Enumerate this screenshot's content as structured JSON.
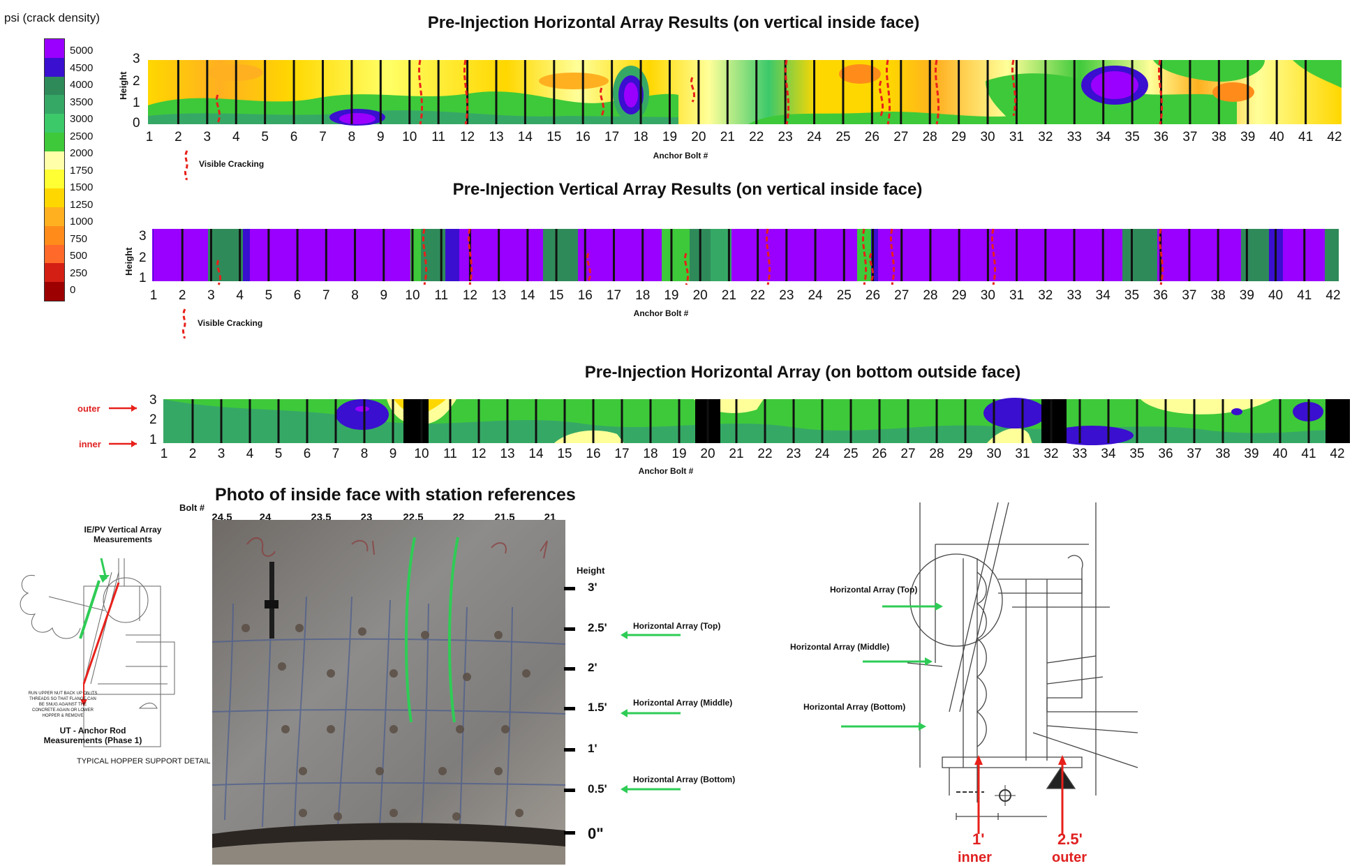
{
  "legend": {
    "title": "psi  (crack density)",
    "labels": [
      "5000",
      "4500",
      "4000",
      "3500",
      "3000",
      "2500",
      "2000",
      "1750",
      "1500",
      "1250",
      "1000",
      "750",
      "500",
      "250",
      "0"
    ],
    "colors": [
      "#9a00ff",
      "#3a0fcf",
      "#2f8a5a",
      "#36a866",
      "#3cc96a",
      "#3ec93a",
      "#ffffaa",
      "#ffff33",
      "#ffd700",
      "#ffb020",
      "#ff8c1a",
      "#ff6a2a",
      "#d41f14",
      "#9c0000",
      "#5a0000"
    ]
  },
  "panels": {
    "p1": {
      "title": "Pre-Injection Horizontal Array Results (on vertical inside face)",
      "ylabel": "Height",
      "yticks": [
        "3",
        "2",
        "1",
        "0"
      ],
      "xlabel": "Anchor Bolt #",
      "cracking_label": "Visible Cracking"
    },
    "p2": {
      "title": "Pre-Injection Vertical Array Results (on vertical inside face)",
      "ylabel": "Height",
      "yticks": [
        "3",
        "2",
        "1"
      ],
      "xlabel": "Anchor Bolt #",
      "cracking_label": "Visible Cracking"
    },
    "p3": {
      "title": "Pre-Injection Horizontal Array (on bottom outside face)",
      "yticks": [
        "3",
        "2",
        "1"
      ],
      "xlabel": "Anchor Bolt #",
      "outer_label": "outer",
      "inner_label": "inner"
    }
  },
  "bolt_numbers": [
    "1",
    "2",
    "3",
    "4",
    "5",
    "6",
    "7",
    "8",
    "9",
    "10",
    "11",
    "12",
    "13",
    "14",
    "15",
    "16",
    "17",
    "18",
    "19",
    "20",
    "21",
    "22",
    "23",
    "24",
    "25",
    "26",
    "27",
    "28",
    "29",
    "30",
    "31",
    "32",
    "33",
    "34",
    "35",
    "36",
    "37",
    "38",
    "39",
    "40",
    "41",
    "42"
  ],
  "photo": {
    "title": "Photo of inside face with station references",
    "bolt_label": "Bolt #",
    "bolt_stations": [
      "24.5",
      "24",
      "23.5",
      "23",
      "22.5",
      "22",
      "21.5",
      "21"
    ],
    "height_label": "Height",
    "heights": [
      "3'",
      "2.5'",
      "2'",
      "1.5'",
      "1'",
      "0.5'",
      "0\""
    ],
    "array_top": "Horizontal Array (Top)",
    "array_middle": "Horizontal Array (Middle)",
    "array_bottom": "Horizontal Array (Bottom)"
  },
  "left_detail": {
    "ie_label": "IE/PV Vertical Array Measurements",
    "ut_label": "UT - Anchor Rod Measurements (Phase 1)",
    "caption": "TYPICAL HOPPER SUPPORT DETAIL",
    "note": "RUN UPPER NUT BACK UP ON ITS THREADS SO THAT FLANGE CAN BE SNUG AGAINST THE CONCRETE AGAIN OR LOWER HOPPER & REMOVE"
  },
  "right_detail": {
    "top": "Horizontal Array (Top)",
    "middle": "Horizontal Array (Middle)",
    "bottom": "Horizontal Array (Bottom)",
    "inner_value": "1'",
    "inner_label": "inner",
    "outer_value": "2.5'",
    "outer_label": "outer"
  }
}
